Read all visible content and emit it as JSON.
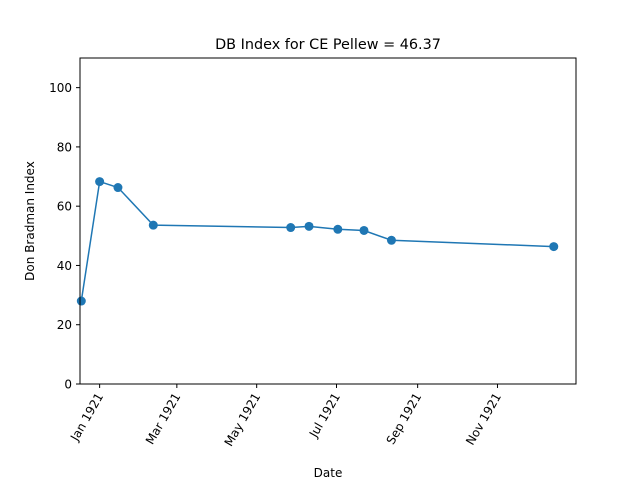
{
  "chart_data": {
    "type": "line",
    "title": "DB Index for CE Pellew = 46.37",
    "xlabel": "Date",
    "ylabel": "Don Bradman Index",
    "ylim": [
      0,
      110
    ],
    "xlim": [
      "1920-12-17",
      "1921-12-31"
    ],
    "yticks": [
      0,
      20,
      40,
      60,
      80,
      100
    ],
    "xticks": [
      {
        "date": "1921-01-01",
        "label": "Jan 1921"
      },
      {
        "date": "1921-03-01",
        "label": "Mar 1921"
      },
      {
        "date": "1921-05-01",
        "label": "May 1921"
      },
      {
        "date": "1921-07-01",
        "label": "Jul 1921"
      },
      {
        "date": "1921-09-01",
        "label": "Sep 1921"
      },
      {
        "date": "1921-11-01",
        "label": "Nov 1921"
      }
    ],
    "grid": false,
    "color": "#1f77b4",
    "series": [
      {
        "x": [
          "1920-12-18",
          "1921-01-01",
          "1921-01-15",
          "1921-02-11",
          "1921-05-27",
          "1921-06-10",
          "1921-07-02",
          "1921-07-22",
          "1921-08-12",
          "1921-12-14"
        ],
        "y": [
          28.0,
          68.3,
          66.3,
          53.6,
          52.8,
          53.2,
          52.2,
          51.8,
          48.5,
          46.37
        ]
      }
    ]
  }
}
